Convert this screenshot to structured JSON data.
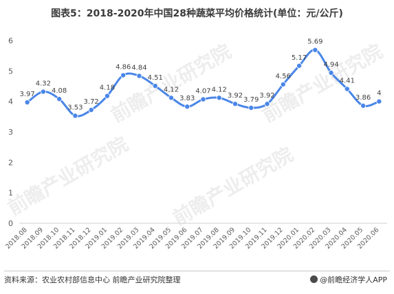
{
  "watermark_text": "前瞻产业研究院",
  "footer": {
    "source": "资料来源：农业农村部信息中心 前瞻产业研究院整理",
    "brand": "@前瞻经济学人APP"
  },
  "colors": {
    "line": "#4a86e8",
    "marker": "#4a86e8",
    "axis": "#cfcfcf",
    "text": "#595959"
  },
  "chart_data": {
    "type": "line",
    "title": "图表5：2018-2020年中国28种蔬菜平均价格统计(单位：元/公斤)",
    "xlabel": "",
    "ylabel": "",
    "ylim": [
      0,
      6
    ],
    "yticks": [
      "0",
      "1",
      "2",
      "3",
      "4",
      "5",
      "6"
    ],
    "grid": false,
    "categories": [
      "2018.08",
      "2018.09",
      "2018.10",
      "2018.11",
      "2018.12",
      "2019.01",
      "2019.02",
      "2019.03",
      "2019.04",
      "2019.05",
      "2019.06",
      "2019.07",
      "2019.08",
      "2019.09",
      "2019.10",
      "2019.11",
      "2019.12",
      "2020.01",
      "2020.02",
      "2020.03",
      "2020.04",
      "2020.05",
      "2020.06"
    ],
    "values": [
      3.97,
      4.32,
      4.08,
      3.53,
      3.72,
      4.18,
      4.86,
      4.84,
      4.51,
      4.12,
      3.83,
      4.07,
      4.12,
      3.92,
      3.79,
      3.92,
      4.56,
      5.17,
      5.69,
      4.94,
      4.41,
      3.86,
      4
    ],
    "labels": [
      "3.97",
      "4.32",
      "4.08",
      "3.53",
      "3.72",
      "4.18",
      "4.86",
      "4.84",
      "4.51",
      "4.12",
      "3.83",
      "4.07",
      "4.12",
      "3.92",
      "3.79",
      "3.92",
      "4.56",
      "5.17",
      "5.69",
      "4.94",
      "4.41",
      "3.86",
      "4"
    ]
  }
}
